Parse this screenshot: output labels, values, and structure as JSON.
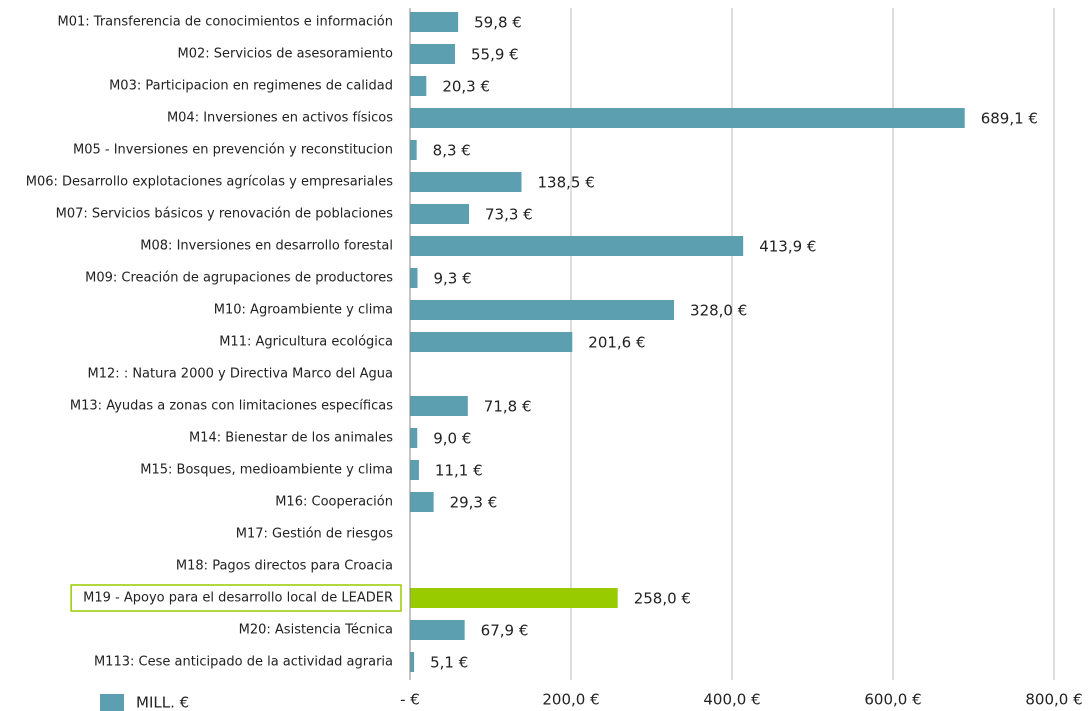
{
  "chart_data": {
    "type": "barh",
    "categories": [
      "M01: Transferencia de conocimientos e información",
      "M02: Servicios de asesoramiento",
      "M03: Participacion en regimenes de calidad",
      "M04: Inversiones en activos físicos",
      "M05 - Inversiones en prevención y reconstitucion",
      "M06: Desarrollo explotaciones agrícolas y empresariales",
      "M07: Servicios básicos y renovación de poblaciones",
      "M08: Inversiones en desarrollo forestal",
      "M09: Creación de agrupaciones de productores",
      "M10: Agroambiente y clima",
      "M11: Agricultura ecológica",
      "M12: : Natura 2000 y Directiva Marco del Agua",
      "M13: Ayudas a zonas con limitaciones específicas",
      "M14: Bienestar de los animales",
      "M15: Bosques, medioambiente y clima",
      "M16: Cooperación",
      "M17: Gestión de riesgos",
      "M18: Pagos directos para Croacia",
      "M19 - Apoyo para el desarrollo local de LEADER",
      "M20: Asistencia Técnica",
      "M113: Cese anticipado de la actividad agraria"
    ],
    "series": [
      {
        "name": "MILL. €",
        "color": "#5b9fb0",
        "values": [
          59.8,
          55.9,
          20.3,
          689.1,
          8.3,
          138.5,
          73.3,
          413.9,
          9.3,
          328.0,
          201.6,
          null,
          71.8,
          9.0,
          11.1,
          29.3,
          null,
          null,
          258.0,
          67.9,
          5.1
        ],
        "value_labels": [
          "59,8 €",
          "55,9 €",
          "20,3 €",
          "689,1 €",
          "8,3 €",
          "138,5 €",
          "73,3 €",
          "413,9 €",
          "9,3 €",
          "328,0 €",
          "201,6 €",
          null,
          "71,8 €",
          "9,0 €",
          "11,1 €",
          "29,3 €",
          null,
          null,
          "258,0 €",
          "67,9 €",
          "5,1 €"
        ],
        "colors": [
          "#5b9fb0",
          "#5b9fb0",
          "#5b9fb0",
          "#5b9fb0",
          "#5b9fb0",
          "#5b9fb0",
          "#5b9fb0",
          "#5b9fb0",
          "#5b9fb0",
          "#5b9fb0",
          "#5b9fb0",
          "#5b9fb0",
          "#5b9fb0",
          "#5b9fb0",
          "#5b9fb0",
          "#5b9fb0",
          "#5b9fb0",
          "#5b9fb0",
          "#99cc00",
          "#5b9fb0",
          "#5b9fb0"
        ]
      }
    ],
    "xlim": [
      0,
      800
    ],
    "xticks": [
      {
        "value": 0,
        "label": "-   €"
      },
      {
        "value": 200,
        "label": "200,0 €"
      },
      {
        "value": 400,
        "label": "400,0 €"
      },
      {
        "value": 600,
        "label": "600,0 €"
      },
      {
        "value": 800,
        "label": "800,0 €"
      }
    ],
    "grid": true,
    "legend": "bottom-left"
  }
}
